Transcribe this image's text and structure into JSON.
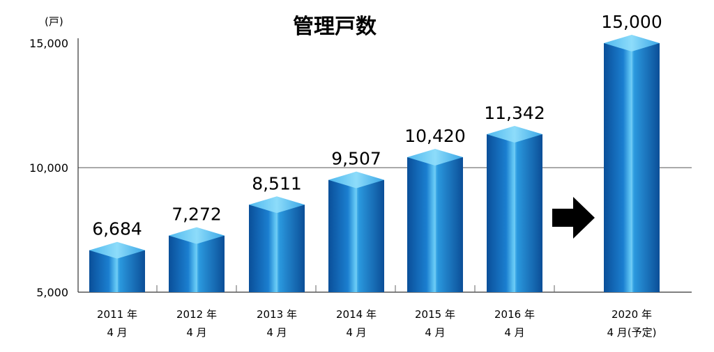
{
  "chart_data": {
    "type": "bar",
    "title": "管理戸数",
    "y_unit": "(戸)",
    "ylim": [
      5000,
      15000
    ],
    "yticks": [
      "5,000",
      "10,000",
      "15,000"
    ],
    "ytick_values": [
      5000,
      10000,
      15000
    ],
    "gridlines": [
      10000
    ],
    "categories": [
      [
        "2011 年",
        "4 月"
      ],
      [
        "2012 年",
        "4 月"
      ],
      [
        "2013 年",
        "4 月"
      ],
      [
        "2014 年",
        "4 月"
      ],
      [
        "2015 年",
        "4 月"
      ],
      [
        "2016 年",
        "4 月"
      ],
      [
        "2020 年",
        "4 月(予定)"
      ]
    ],
    "values": [
      6684,
      7272,
      8511,
      9507,
      10420,
      11342,
      15000
    ],
    "value_labels": [
      "6,684",
      "7,272",
      "8,511",
      "9,507",
      "10,420",
      "11,342",
      "15,000"
    ],
    "annotation": "right-arrow-before-2020",
    "bar_color": "#1a7fc9"
  }
}
